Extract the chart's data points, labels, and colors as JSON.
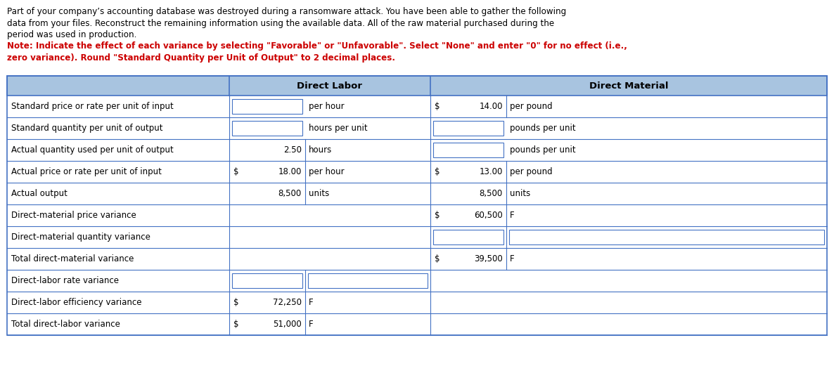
{
  "intro_lines": [
    [
      "Part of your company’s accounting database was destroyed during a ransomware attack. You have been able to gather the following",
      false
    ],
    [
      "data from your files. Reconstruct the remaining information using the available data. All of the raw material purchased during the",
      false
    ],
    [
      "period was used in production.",
      false
    ],
    [
      "Note: Indicate the effect of each variance by selecting \"Favorable\" or \"Unfavorable\". Select \"None\" and enter \"0\" for no effect (i.e.,",
      true
    ],
    [
      "zero variance). Round \"Standard Quantity per Unit of Output\" to 2 decimal places.",
      true
    ]
  ],
  "intro_color": "#000000",
  "note_color": "#cc0000",
  "header_bg": "#a8c4e0",
  "table_border_color": "#4472c4",
  "input_box_border": "#4472c4",
  "rows": [
    {
      "label": "Standard price or rate per unit of input",
      "dl_num": "",
      "dl_unit": "per hour",
      "dl_has_input": true,
      "dl_input_side": "left",
      "dm_dollar": "$",
      "dm_num": "14.00",
      "dm_unit": "per pound",
      "dm_has_input": false
    },
    {
      "label": "Standard quantity per unit of output",
      "dl_num": "",
      "dl_unit": "hours per unit",
      "dl_has_input": true,
      "dl_input_side": "left",
      "dm_dollar": "",
      "dm_num": "",
      "dm_unit": "pounds per unit",
      "dm_has_input": true,
      "dm_input_side": "left"
    },
    {
      "label": "Actual quantity used per unit of output",
      "dl_num": "2.50",
      "dl_unit": "hours",
      "dl_has_input": false,
      "dl_input_side": "",
      "dm_dollar": "",
      "dm_num": "",
      "dm_unit": "pounds per unit",
      "dm_has_input": true,
      "dm_input_side": "left"
    },
    {
      "label": "Actual price or rate per unit of input",
      "dl_dollar": "$",
      "dl_num": "18.00",
      "dl_unit": "per hour",
      "dl_has_input": false,
      "dl_input_side": "",
      "dm_dollar": "$",
      "dm_num": "13.00",
      "dm_unit": "per pound",
      "dm_has_input": false
    },
    {
      "label": "Actual output",
      "dl_num": "8,500",
      "dl_unit": "units",
      "dl_has_input": false,
      "dl_input_side": "",
      "dm_dollar": "",
      "dm_num": "8,500",
      "dm_unit": "units",
      "dm_has_input": false
    },
    {
      "label": "Direct-material price variance",
      "dl_num": "",
      "dl_unit": "",
      "dl_has_input": false,
      "dl_input_side": "",
      "dm_dollar": "$",
      "dm_num": "60,500",
      "dm_unit": "F",
      "dm_has_input": false
    },
    {
      "label": "Direct-material quantity variance",
      "dl_num": "",
      "dl_unit": "",
      "dl_has_input": false,
      "dl_input_side": "",
      "dm_dollar": "",
      "dm_num": "",
      "dm_unit": "",
      "dm_has_input": true,
      "dm_input_side": "both"
    },
    {
      "label": "Total direct-material variance",
      "dl_num": "",
      "dl_unit": "",
      "dl_has_input": false,
      "dl_input_side": "",
      "dm_dollar": "$",
      "dm_num": "39,500",
      "dm_unit": "F",
      "dm_has_input": false
    },
    {
      "label": "Direct-labor rate variance",
      "dl_num": "",
      "dl_unit": "",
      "dl_has_input": true,
      "dl_input_side": "both",
      "dm_dollar": "",
      "dm_num": "",
      "dm_unit": "",
      "dm_has_input": false
    },
    {
      "label": "Direct-labor efficiency variance",
      "dl_dollar": "$",
      "dl_num": "72,250",
      "dl_unit": "F",
      "dl_has_input": false,
      "dl_input_side": "",
      "dm_dollar": "",
      "dm_num": "",
      "dm_unit": "",
      "dm_has_input": false
    },
    {
      "label": "Total direct-labor variance",
      "dl_dollar": "$",
      "dl_num": "51,000",
      "dl_unit": "F",
      "dl_has_input": false,
      "dl_input_side": "",
      "dm_dollar": "",
      "dm_num": "",
      "dm_unit": "",
      "dm_has_input": false
    }
  ]
}
